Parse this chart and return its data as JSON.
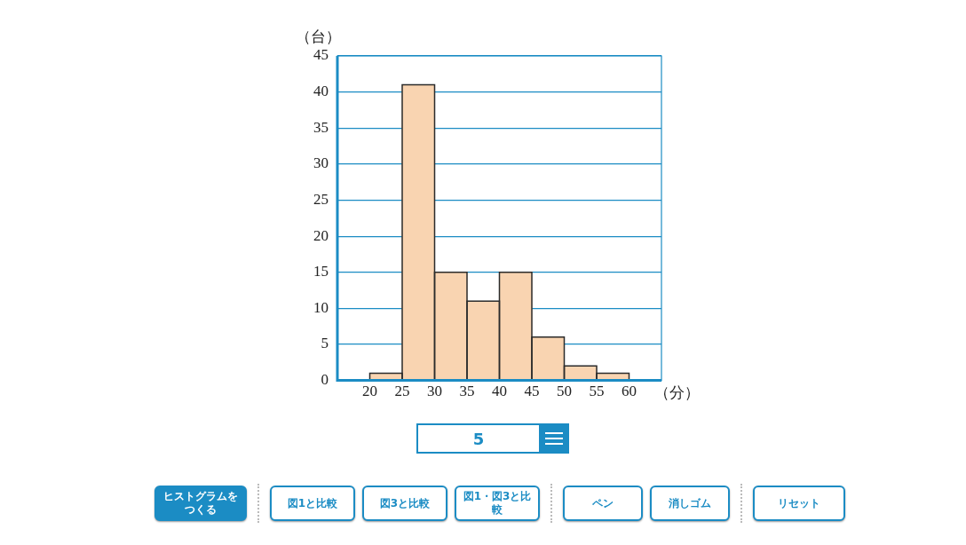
{
  "chart_data": {
    "type": "histogram",
    "ylabel": "（台）",
    "xlabel": "（分）",
    "bins": [
      20,
      25,
      30,
      35,
      40,
      45,
      50,
      55,
      60
    ],
    "values": [
      1,
      41,
      15,
      11,
      15,
      6,
      2,
      1
    ],
    "color": "#f9d4b1",
    "xlim": [
      15,
      65
    ],
    "xticks": [
      20,
      25,
      30,
      35,
      40,
      45,
      50,
      55,
      60
    ],
    "ylim": [
      0,
      45
    ],
    "yticks": [
      0,
      5,
      10,
      15,
      20,
      25,
      30,
      35,
      40,
      45
    ],
    "grid": "y",
    "legend": false,
    "annotations": [
      "5",
      "ヒストグラムをつくる",
      "図1と比較",
      "図3と比較",
      "図1・図3と比較",
      "ペン",
      "消しゴム",
      "リセット"
    ]
  }
}
